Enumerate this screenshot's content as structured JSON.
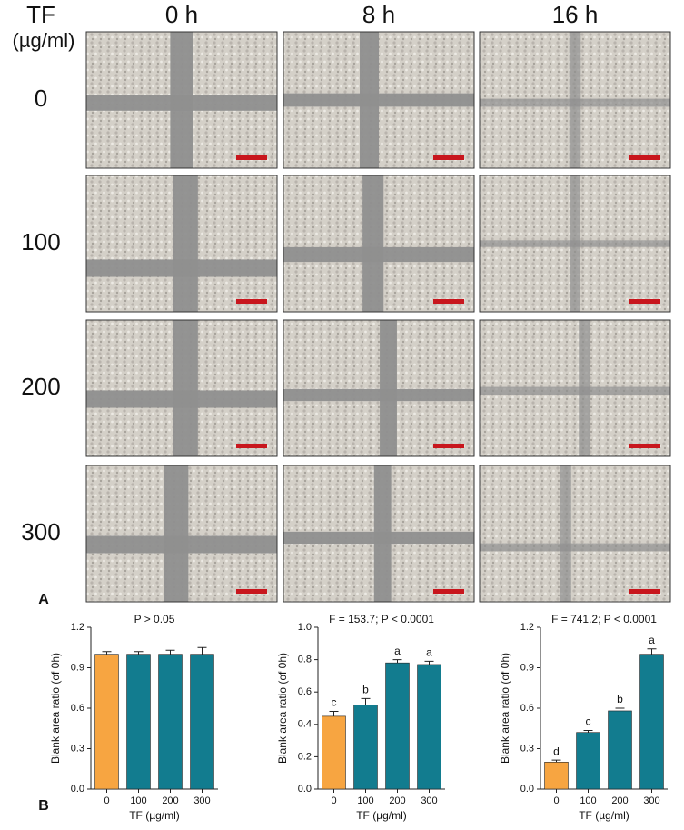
{
  "figure": {
    "row_header": [
      "TF",
      "(µg/ml)"
    ],
    "columns": [
      "0 h",
      "8 h",
      "16 h"
    ],
    "rows": [
      "0",
      "100",
      "200",
      "300"
    ],
    "panel_a_label": "A",
    "panel_b_label": "B"
  },
  "chart_data": [
    {
      "type": "bar",
      "annotation": "P > 0.05",
      "ylabel": "Blank area ratio (of 0h)",
      "xlabel": "TF (µg/ml)",
      "categories": [
        "0",
        "100",
        "200",
        "300"
      ],
      "values": [
        1.0,
        1.0,
        1.0,
        1.0
      ],
      "errors": [
        0.02,
        0.02,
        0.03,
        0.05
      ],
      "colors": [
        "#f7a541",
        "#127c8f",
        "#127c8f",
        "#127c8f"
      ],
      "ylim": [
        0,
        1.2
      ],
      "yticks": [
        {
          "value": 0,
          "label": "0.0"
        },
        0.3,
        0.6,
        0.9,
        1.2
      ]
    },
    {
      "type": "bar",
      "annotation": "F = 153.7; P < 0.0001",
      "ylabel": "Blank area ratio (of 0h)",
      "xlabel": "TF (µg/ml)",
      "categories": [
        "0",
        "100",
        "200",
        "300"
      ],
      "values": [
        0.45,
        0.52,
        0.78,
        0.77
      ],
      "errors": [
        0.03,
        0.04,
        0.02,
        0.02
      ],
      "significance_labels": [
        "c",
        "b",
        "a",
        "a"
      ],
      "colors": [
        "#f7a541",
        "#127c8f",
        "#127c8f",
        "#127c8f"
      ],
      "ylim": [
        0,
        1.0
      ],
      "yticks": [
        {
          "value": 0,
          "label": "0.0"
        },
        0.2,
        0.4,
        0.6,
        0.8,
        {
          "value": 1,
          "label": "1.0"
        }
      ]
    },
    {
      "type": "bar",
      "annotation": "F = 741.2; P < 0.0001",
      "ylabel": "Blank area ratio (of 0h)",
      "xlabel": "TF (µg/ml)",
      "categories": [
        "0",
        "100",
        "200",
        "300"
      ],
      "values": [
        0.2,
        0.42,
        0.58,
        1.0
      ],
      "errors": [
        0.015,
        0.015,
        0.02,
        0.04
      ],
      "significance_labels": [
        "d",
        "c",
        "b",
        "a"
      ],
      "colors": [
        "#f7a541",
        "#127c8f",
        "#127c8f",
        "#127c8f"
      ],
      "ylim": [
        0,
        1.2
      ],
      "yticks": [
        {
          "value": 0,
          "label": "0.0"
        },
        0.3,
        0.6,
        0.9,
        1.2
      ]
    }
  ]
}
